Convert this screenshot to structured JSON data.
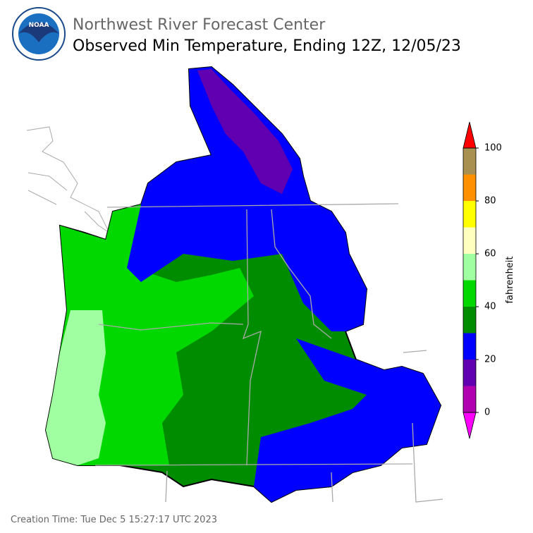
{
  "header": {
    "logo_text": "NOAA",
    "title": "Northwest River Forecast Center",
    "subtitle": "Observed Min Temperature, Ending 12Z, 12/05/23"
  },
  "colorbar": {
    "label": "fahrenheit",
    "range": [
      0,
      100
    ],
    "ticks": [
      0,
      20,
      40,
      60,
      80,
      100
    ],
    "bounds": [
      0,
      10,
      20,
      30,
      40,
      50,
      60,
      70,
      80,
      90,
      100
    ],
    "colors": [
      "#b000b0",
      "#6000b0",
      "#0000ff",
      "#008c00",
      "#00d800",
      "#a0ffa0",
      "#ffffc0",
      "#ffff00",
      "#ff9000",
      "#a89050"
    ],
    "under_color": "#ff00ff",
    "over_color": "#ff0000"
  },
  "footer": {
    "creation_time": "Creation Time: Tue Dec 5 15:27:17 UTC 2023"
  }
}
